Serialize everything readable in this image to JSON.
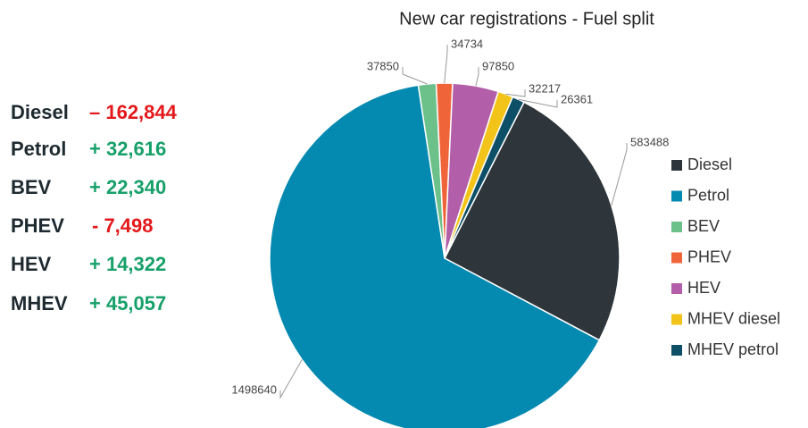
{
  "chart_data": {
    "type": "pie",
    "title": "New car registrations - Fuel split",
    "categories": [
      "Diesel",
      "Petrol",
      "BEV",
      "PHEV",
      "HEV",
      "MHEV diesel",
      "MHEV petrol"
    ],
    "values": [
      583488,
      1498640,
      37850,
      34734,
      97850,
      32217,
      26361
    ],
    "colors": [
      "#2e363b",
      "#0489b1",
      "#6cc18a",
      "#f0643a",
      "#b35ea8",
      "#f2c318",
      "#0d4f66"
    ],
    "legend": "right"
  },
  "changes": [
    {
      "label": "Diesel",
      "change": "– 162,844",
      "color": "#e3191b"
    },
    {
      "label": "Petrol",
      "change": "+ 32,616",
      "color": "#17a06a"
    },
    {
      "label": "BEV",
      "change": "+ 22,340",
      "color": "#17a06a"
    },
    {
      "label": "PHEV",
      "change": "- 7,498",
      "color": "#e3191b"
    },
    {
      "label": "HEV",
      "change": "+ 14,322",
      "color": "#17a06a"
    },
    {
      "label": "MHEV",
      "change": "+ 45,057",
      "color": "#17a06a"
    }
  ]
}
